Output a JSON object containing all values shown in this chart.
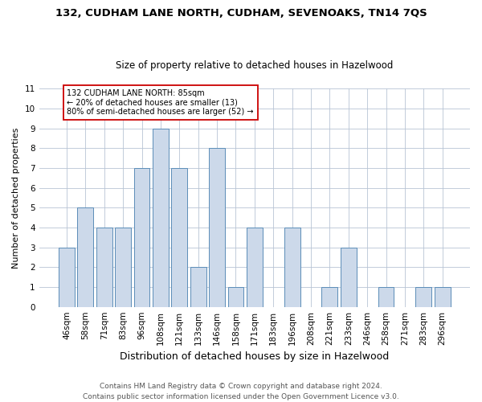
{
  "title": "132, CUDHAM LANE NORTH, CUDHAM, SEVENOAKS, TN14 7QS",
  "subtitle": "Size of property relative to detached houses in Hazelwood",
  "xlabel": "Distribution of detached houses by size in Hazelwood",
  "ylabel": "Number of detached properties",
  "categories": [
    "46sqm",
    "58sqm",
    "71sqm",
    "83sqm",
    "96sqm",
    "108sqm",
    "121sqm",
    "133sqm",
    "146sqm",
    "158sqm",
    "171sqm",
    "183sqm",
    "196sqm",
    "208sqm",
    "221sqm",
    "233sqm",
    "246sqm",
    "258sqm",
    "271sqm",
    "283sqm",
    "296sqm"
  ],
  "values": [
    3,
    5,
    4,
    4,
    7,
    9,
    7,
    2,
    8,
    1,
    4,
    0,
    4,
    0,
    1,
    3,
    0,
    1,
    0,
    1,
    1
  ],
  "bar_color": "#ccd9ea",
  "bar_edge_color": "#5b8db8",
  "background_color": "#ffffff",
  "grid_color": "#b8c4d4",
  "annotation_text": "132 CUDHAM LANE NORTH: 85sqm\n← 20% of detached houses are smaller (13)\n80% of semi-detached houses are larger (52) →",
  "annotation_box_color": "#ffffff",
  "annotation_box_edge": "#cc0000",
  "footer_line1": "Contains HM Land Registry data © Crown copyright and database right 2024.",
  "footer_line2": "Contains public sector information licensed under the Open Government Licence v3.0.",
  "ylim": [
    0,
    11
  ],
  "yticks": [
    0,
    1,
    2,
    3,
    4,
    5,
    6,
    7,
    8,
    9,
    10,
    11
  ],
  "title_fontsize": 9.5,
  "subtitle_fontsize": 8.5,
  "ylabel_fontsize": 8,
  "xlabel_fontsize": 9,
  "tick_fontsize": 7.5,
  "footer_fontsize": 6.5
}
